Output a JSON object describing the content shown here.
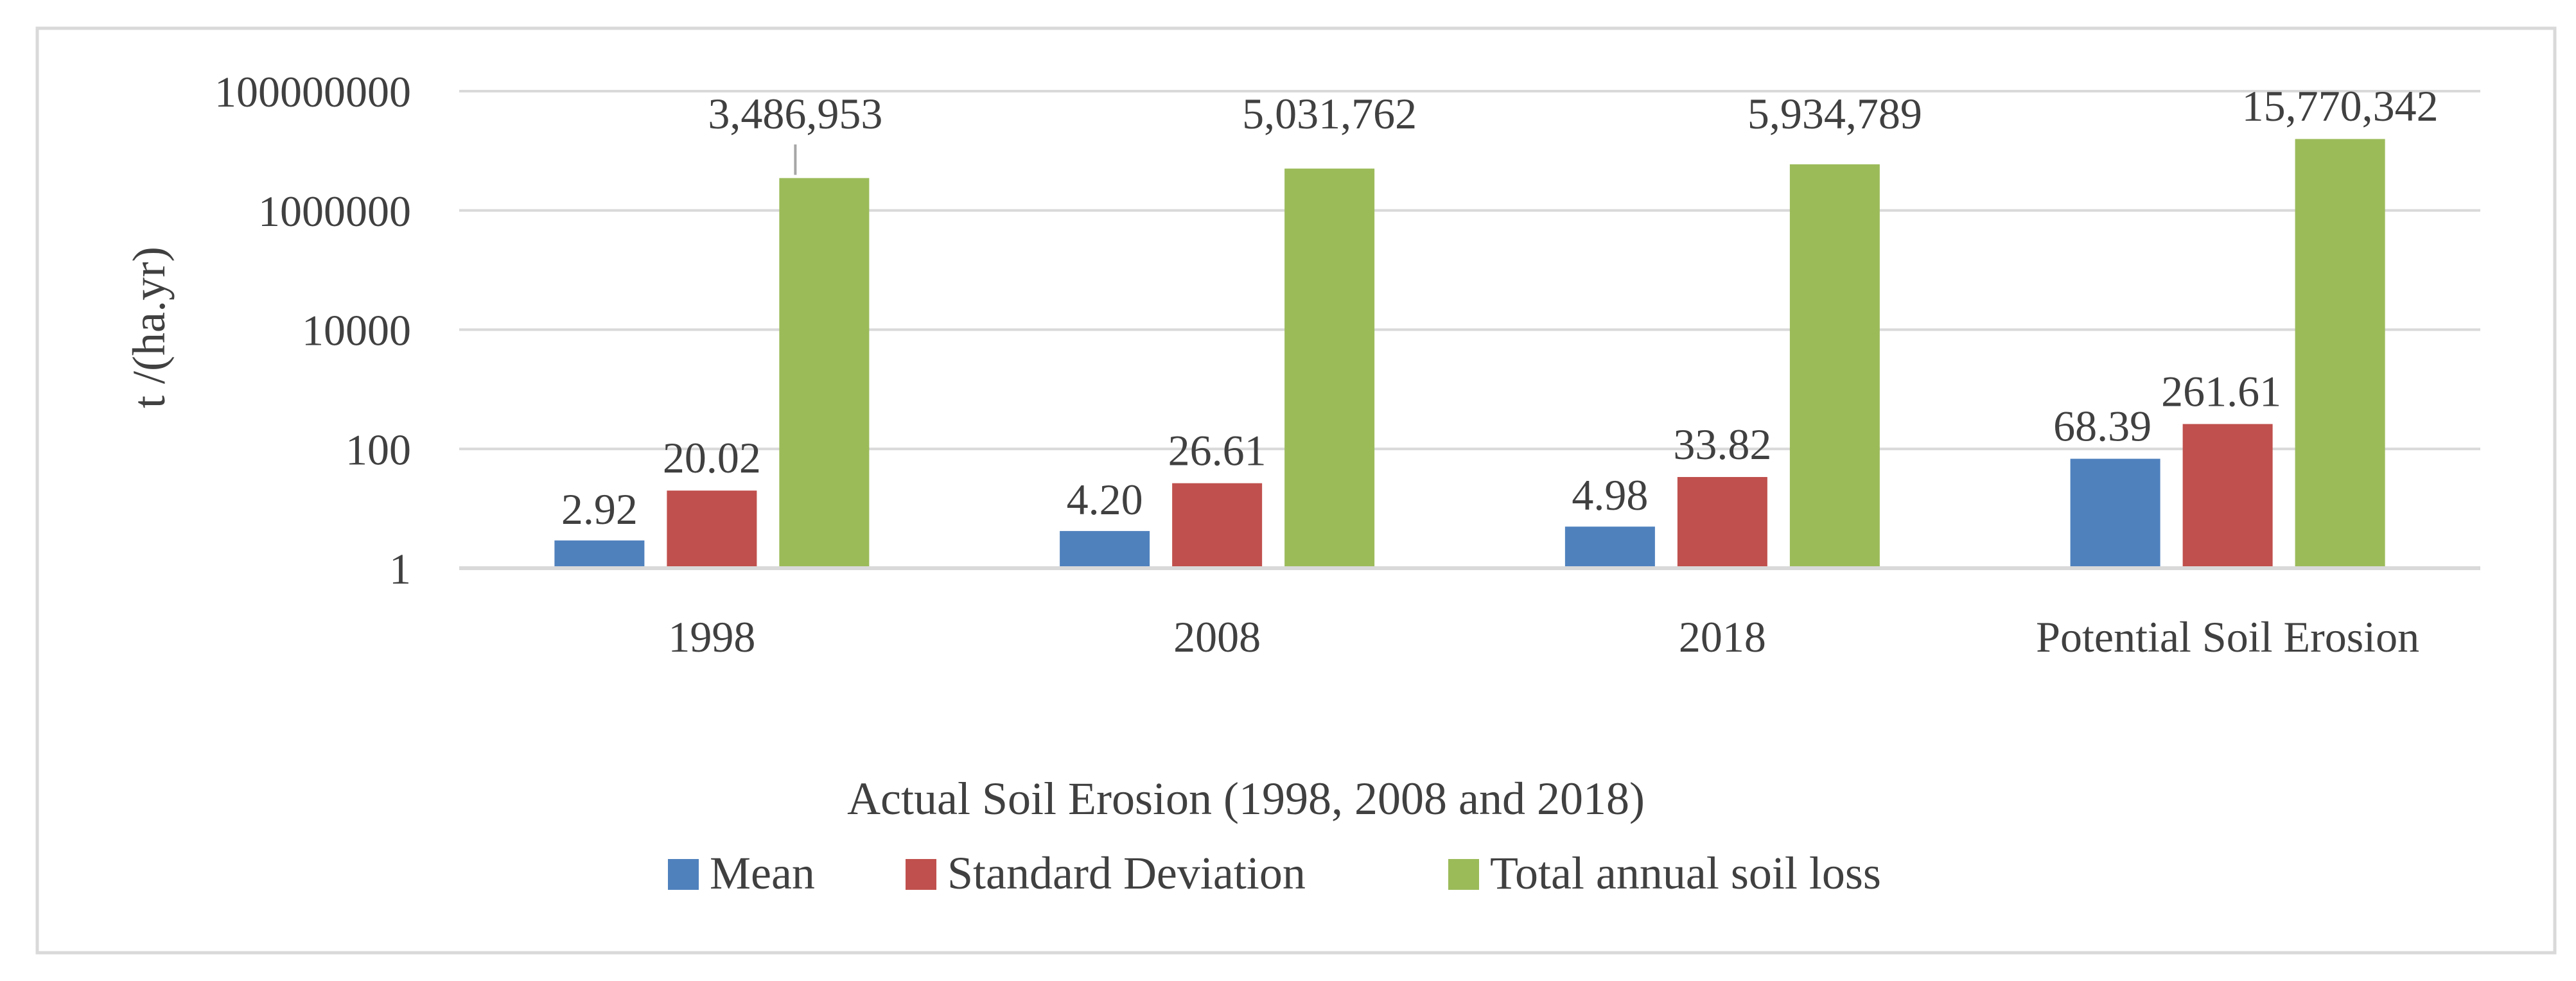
{
  "chart_data": {
    "type": "bar",
    "title": "",
    "xlabel": "Actual Soil Erosion (1998, 2008 and 2018)",
    "ylabel": "t /(ha.yr)",
    "yscale": "log10",
    "ylim": [
      1,
      100000000
    ],
    "yticks": [
      {
        "value": 1,
        "label": "1"
      },
      {
        "value": 100,
        "label": "100"
      },
      {
        "value": 10000,
        "label": "10000"
      },
      {
        "value": 1000000,
        "label": "1000000"
      },
      {
        "value": 100000000,
        "label": "100000000"
      }
    ],
    "categories": [
      "1998",
      "2008",
      "2018",
      "Potential Soil Erosion"
    ],
    "series": [
      {
        "name": "Mean",
        "color": "#4F81BD",
        "values": [
          2.92,
          4.2,
          4.98,
          68.39
        ],
        "labels": [
          "2.92",
          "4.20",
          "4.98",
          "68.39"
        ]
      },
      {
        "name": "Standard Deviation",
        "color": "#C0504D",
        "values": [
          20.02,
          26.61,
          33.82,
          261.61
        ],
        "labels": [
          "20.02",
          "26.61",
          "33.82",
          "261.61"
        ]
      },
      {
        "name": "Total annual soil loss",
        "color": "#9BBB59",
        "values": [
          3486953,
          5031762,
          5934789,
          15770342
        ],
        "labels": [
          "3,486,953",
          "5,031,762",
          "5,934,789",
          "15,770,342"
        ]
      }
    ],
    "grid": true,
    "legend": "bottom"
  }
}
